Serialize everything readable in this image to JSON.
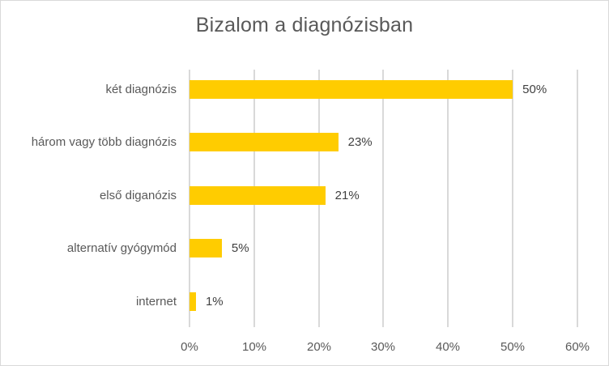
{
  "chart_data": {
    "type": "bar",
    "orientation": "horizontal",
    "title": "Bizalom a diagnózisban",
    "categories": [
      "két diagnózis",
      "három vagy több diagnózis",
      "első diganózis",
      "alternatív gyógymód",
      "internet"
    ],
    "values": [
      50,
      23,
      21,
      5,
      1
    ],
    "value_labels": [
      "50%",
      "23%",
      "21%",
      "5%",
      "1%"
    ],
    "xlabel": "",
    "ylabel": "",
    "xlim": [
      0,
      60
    ],
    "x_ticks": [
      "0%",
      "10%",
      "20%",
      "30%",
      "40%",
      "50%",
      "60%"
    ],
    "grid": true,
    "legend": null,
    "bar_color": "#ffcc00"
  },
  "chart": {
    "title": "Bizalom a diagnózisban",
    "rows": [
      {
        "label": "két diagnózis",
        "value_label": "50%"
      },
      {
        "label": "három vagy több diagnózis",
        "value_label": "23%"
      },
      {
        "label": "első diganózis",
        "value_label": "21%"
      },
      {
        "label": "alternatív gyógymód",
        "value_label": "5%"
      },
      {
        "label": "internet",
        "value_label": "1%"
      }
    ],
    "ticks": [
      "0%",
      "10%",
      "20%",
      "30%",
      "40%",
      "50%",
      "60%"
    ]
  }
}
